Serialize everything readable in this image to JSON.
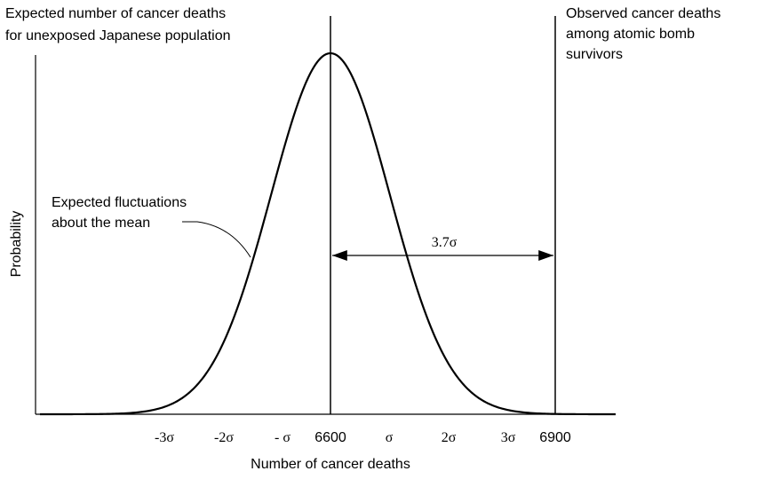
{
  "diagram": {
    "mean_label": [
      "Expected number of cancer deaths",
      "for unexposed Japanese population"
    ],
    "observed_label": [
      "Observed cancer deaths",
      "among atomic bomb",
      "survivors"
    ],
    "fluctuation_label": [
      "Expected fluctuations",
      "about the mean"
    ],
    "arrow_label": "3.7σ",
    "y_axis_label": "Probability",
    "x_axis_label": "Number of cancer deaths",
    "tick_labels": [
      "-3σ",
      "-2σ",
      "- σ",
      "6600",
      "σ",
      "2σ",
      "3σ",
      "6900"
    ]
  }
}
